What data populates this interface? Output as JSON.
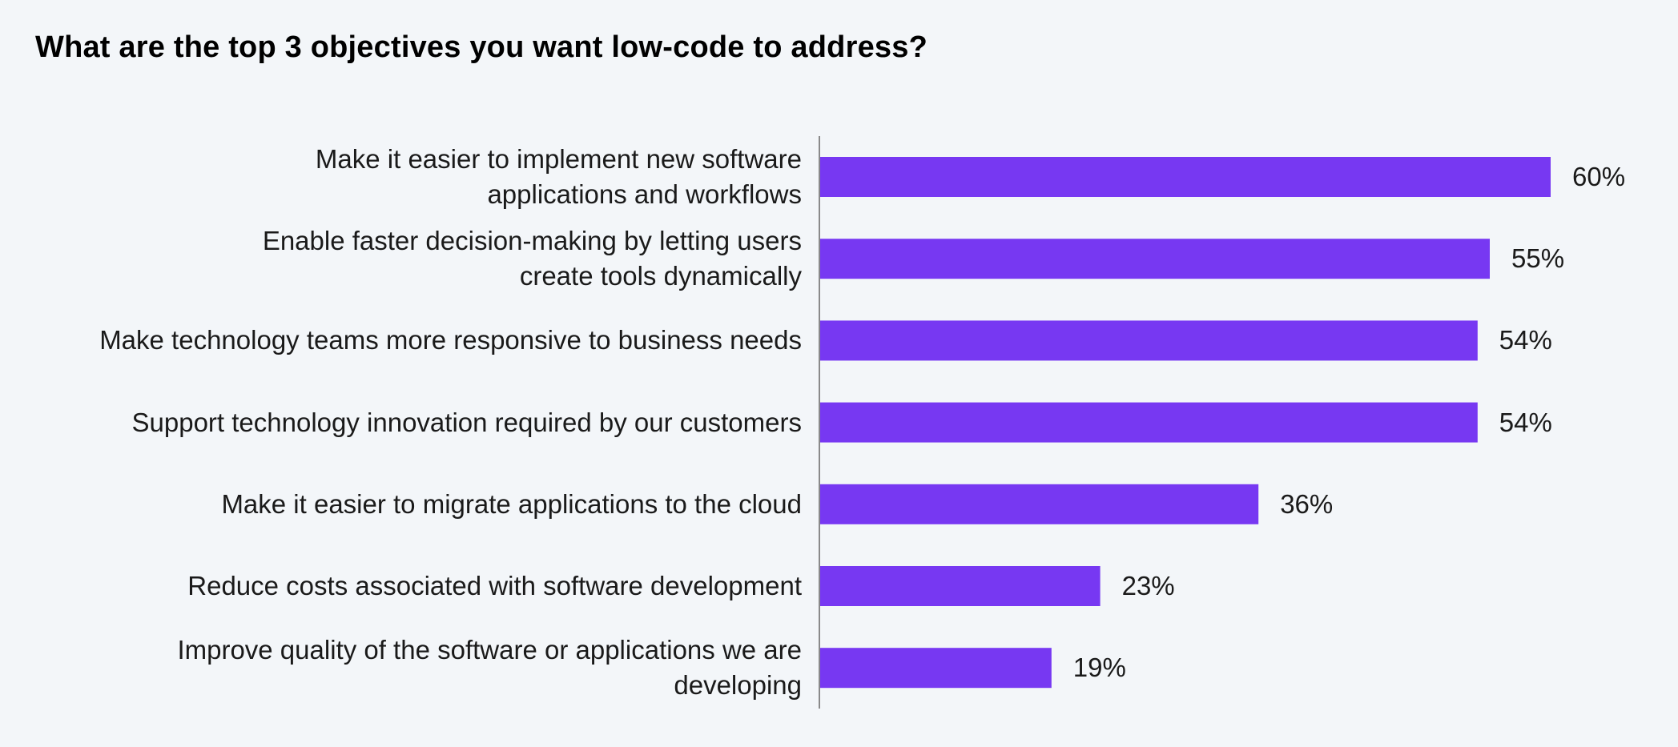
{
  "chart_data": {
    "type": "bar",
    "orientation": "horizontal",
    "title": "What are the top 3 objectives you want low-code to address?",
    "categories": [
      [
        "Make it easier to implement new software",
        "applications and workflows"
      ],
      [
        "Enable faster decision-making by letting users",
        "create tools dynamically"
      ],
      [
        "Make technology teams more responsive to business needs"
      ],
      [
        "Support technology innovation required by our customers"
      ],
      [
        "Make it easier to migrate applications to the cloud"
      ],
      [
        "Reduce costs associated with software development"
      ],
      [
        "Improve quality of the software or applications we are",
        "developing"
      ]
    ],
    "values": [
      60,
      55,
      54,
      54,
      36,
      23,
      19
    ],
    "value_labels": [
      "60%",
      "55%",
      "54%",
      "54%",
      "36%",
      "23%",
      "19%"
    ],
    "xlim": [
      0,
      60
    ],
    "grid": false,
    "legend": "none",
    "colors": {
      "bar": "#7738f2",
      "axis": "#8a8a8a"
    }
  }
}
